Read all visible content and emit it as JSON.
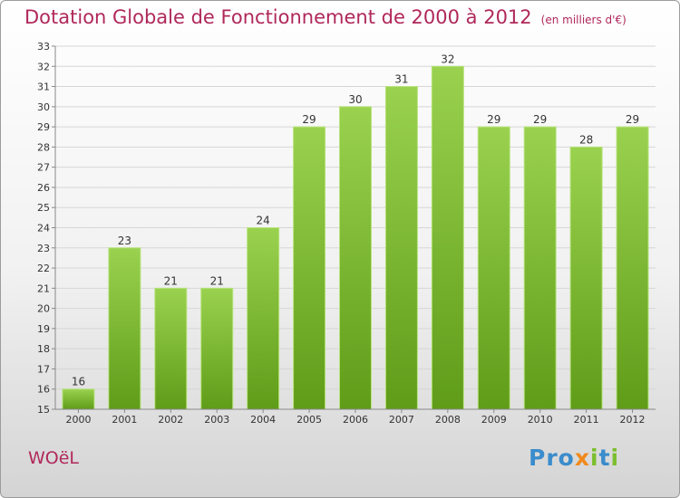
{
  "chart_data": {
    "type": "bar",
    "title": "Dotation Globale de Fonctionnement de 2000 à 2012",
    "unit": "(en milliers d'€)",
    "categories": [
      "2000",
      "2001",
      "2002",
      "2003",
      "2004",
      "2005",
      "2006",
      "2007",
      "2008",
      "2009",
      "2010",
      "2011",
      "2012"
    ],
    "values": [
      16,
      23,
      21,
      21,
      24,
      29,
      30,
      31,
      32,
      29,
      29,
      28,
      29
    ],
    "ylim": [
      15,
      33
    ],
    "grid": true,
    "bar_color": "#7cbf2e"
  },
  "commune": "WOëL",
  "brand": {
    "letters": [
      {
        "char": "P",
        "color": "#3a8ccc"
      },
      {
        "char": "r",
        "color": "#3a8ccc"
      },
      {
        "char": "o",
        "color": "#3a8ccc"
      },
      {
        "char": "x",
        "color": "#f08a1c"
      },
      {
        "char": "i",
        "color": "#7cbf2e"
      },
      {
        "char": "t",
        "color": "#3a8ccc"
      },
      {
        "char": "i",
        "color": "#7cbf2e"
      }
    ]
  }
}
